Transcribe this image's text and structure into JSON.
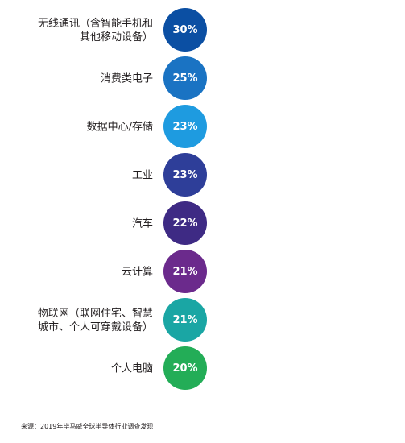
{
  "chart_data": {
    "type": "table",
    "categories": [
      "无线通讯（含智能手机和\n其他移动设备）",
      "消费类电子",
      "数据中心/存储",
      "工业",
      "汽车",
      "云计算",
      "物联网（联网住宅、智慧\n城市、个人可穿戴设备）",
      "个人电脑"
    ],
    "values": [
      30,
      25,
      23,
      23,
      22,
      21,
      21,
      20
    ],
    "value_labels": [
      "30%",
      "25%",
      "23%",
      "23%",
      "22%",
      "21%",
      "21%",
      "20%"
    ],
    "colors": [
      "#0b4fa3",
      "#1a73c3",
      "#1e9be0",
      "#2e3e99",
      "#3e2a84",
      "#6b2a8c",
      "#1aa6a4",
      "#23ad57"
    ]
  },
  "footer": {
    "source": "来源：2019年毕马威全球半导体行业调查发现"
  }
}
